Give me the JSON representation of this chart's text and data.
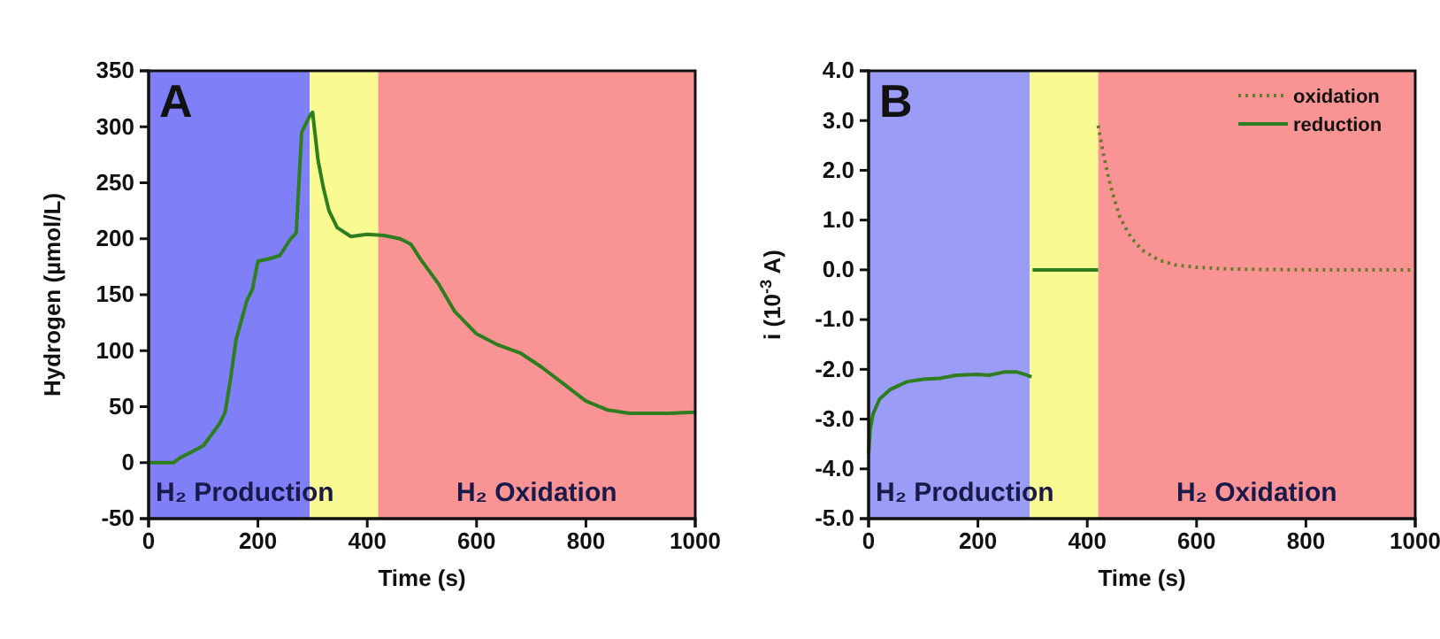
{
  "chart_data": [
    {
      "type": "line",
      "title": "A",
      "xlabel": "Time (s)",
      "ylabel": "Hydrogen (µmol/L)",
      "xlim": [
        0,
        1000
      ],
      "xticks": [
        0,
        200,
        400,
        600,
        800,
        1000
      ],
      "ylim": [
        -50,
        350
      ],
      "yticks": [
        -50,
        0,
        50,
        100,
        150,
        200,
        250,
        300,
        350
      ],
      "grid": false,
      "legend": false,
      "bands": [
        {
          "axis": "x",
          "from": 0,
          "to": 295,
          "label": "H₂ Production",
          "color": "#7f80f8"
        },
        {
          "axis": "x",
          "from": 295,
          "to": 420,
          "color": "#fafa92"
        },
        {
          "axis": "x",
          "from": 420,
          "to": 1000,
          "label": "H₂ Oxidation",
          "color": "#fa9494"
        }
      ],
      "series": [
        {
          "color": "#2e7d1e",
          "line_style": "solid",
          "x": [
            0,
            45,
            60,
            80,
            100,
            130,
            140,
            150,
            160,
            180,
            190,
            200,
            220,
            240,
            260,
            270,
            280,
            295,
            300,
            310,
            320,
            330,
            345,
            370,
            400,
            430,
            460,
            480,
            500,
            530,
            560,
            600,
            640,
            680,
            720,
            760,
            800,
            840,
            880,
            950,
            1000
          ],
          "values": [
            0,
            0,
            5,
            10,
            15,
            35,
            45,
            75,
            110,
            145,
            155,
            180,
            182,
            185,
            200,
            205,
            295,
            310,
            313,
            270,
            245,
            225,
            210,
            202,
            204,
            203,
            200,
            195,
            180,
            160,
            135,
            115,
            105,
            98,
            85,
            70,
            55,
            47,
            44,
            44,
            45
          ]
        }
      ]
    },
    {
      "type": "line",
      "title": "B",
      "xlabel": "Time (s)",
      "ylabel": "i (10$^{-3}$ A)",
      "xlim": [
        0,
        1000
      ],
      "xticks": [
        0,
        200,
        400,
        600,
        800,
        1000
      ],
      "ylim": [
        -5,
        4
      ],
      "yticks": [
        {
          "value": -5,
          "label": "-5.0"
        },
        {
          "value": -4,
          "label": "-4.0"
        },
        {
          "value": -3,
          "label": "-3.0"
        },
        {
          "value": -2,
          "label": "-2.0"
        },
        {
          "value": -1,
          "label": "-1.0"
        },
        {
          "value": 0,
          "label": "0.0"
        },
        {
          "value": 1,
          "label": "1.0"
        },
        {
          "value": 2,
          "label": "2.0"
        },
        {
          "value": 3,
          "label": "3.0"
        },
        {
          "value": 4,
          "label": "4.0"
        }
      ],
      "grid": false,
      "legend": "top right",
      "bands": [
        {
          "axis": "x",
          "from": 0,
          "to": 295,
          "label": "H₂ Production",
          "color": "#9a9cf6"
        },
        {
          "axis": "x",
          "from": 295,
          "to": 420,
          "color": "#fafa92"
        },
        {
          "axis": "x",
          "from": 420,
          "to": 1000,
          "label": "H₂ Oxidation",
          "color": "#fa9494"
        }
      ],
      "series": [
        {
          "name": "oxidation",
          "color": "#6b7a2a",
          "line_style": "dotted",
          "x": [
            420,
            430,
            440,
            450,
            460,
            480,
            500,
            530,
            560,
            600,
            650,
            700,
            800,
            1000
          ],
          "values": [
            2.9,
            2.3,
            1.8,
            1.4,
            1.05,
            0.65,
            0.4,
            0.2,
            0.1,
            0.05,
            0.02,
            0.01,
            0,
            0
          ]
        },
        {
          "name": "reduction",
          "color": "#2e7d1e",
          "line_style": "solid",
          "x": [
            0,
            3,
            8,
            20,
            40,
            70,
            100,
            130,
            160,
            200,
            220,
            250,
            270,
            285,
            298,
            299,
            300,
            420
          ],
          "values": [
            -3.7,
            -3.2,
            -2.9,
            -2.6,
            -2.4,
            -2.25,
            -2.2,
            -2.18,
            -2.12,
            -2.1,
            -2.12,
            -2.05,
            -2.05,
            -2.1,
            -2.15,
            null,
            0,
            0
          ]
        }
      ]
    }
  ]
}
